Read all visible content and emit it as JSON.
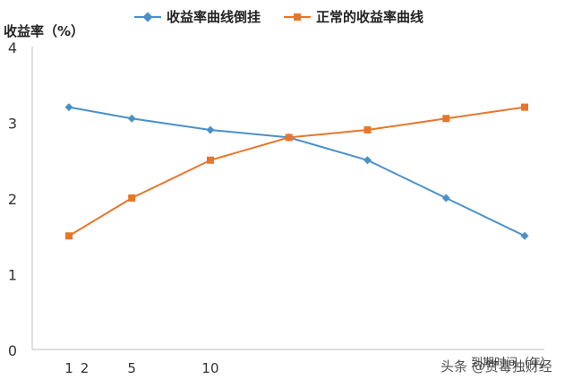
{
  "chart_data": {
    "type": "line",
    "ylabel": "收益率（%）",
    "xlabel": "到期时间（年）",
    "ylim": [
      0,
      4
    ],
    "yticks": [
      0,
      1,
      2,
      3,
      4
    ],
    "xticks": [
      1,
      2,
      5,
      10
    ],
    "xlim": [
      0,
      30
    ],
    "grid": false,
    "legend_position": "top",
    "series": [
      {
        "name": "收益率曲线倒挂",
        "color": "#4a90c8",
        "marker": "diamond",
        "x": [
          1,
          5,
          10,
          15,
          20,
          25,
          30
        ],
        "y": [
          3.2,
          3.05,
          2.9,
          2.8,
          2.5,
          2.0,
          1.5
        ]
      },
      {
        "name": "正常的收益率曲线",
        "color": "#e8762a",
        "marker": "square",
        "x": [
          1,
          5,
          10,
          15,
          20,
          25,
          30
        ],
        "y": [
          1.5,
          2.0,
          2.5,
          2.8,
          2.9,
          3.05,
          3.2
        ]
      }
    ]
  },
  "watermark": "头条 @赏毒独财经"
}
